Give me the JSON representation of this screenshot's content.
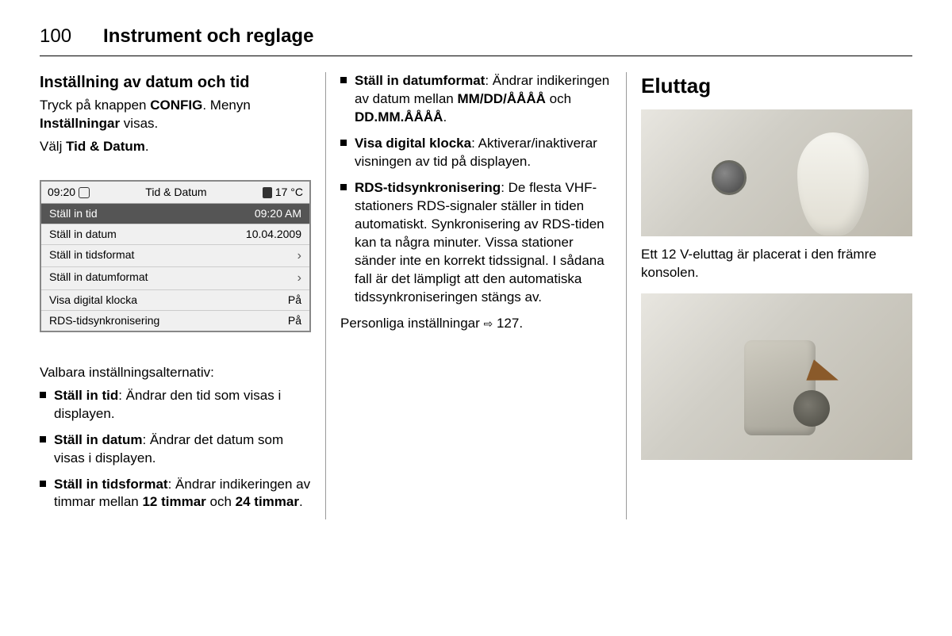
{
  "page_number": "100",
  "chapter": "Instrument och reglage",
  "col1": {
    "section_title": "Inställning av datum och tid",
    "intro_1a": "Tryck på knappen ",
    "intro_1b": "CONFIG",
    "intro_1c": ". Menyn ",
    "intro_1d": "Inställningar",
    "intro_1e": " visas.",
    "intro_2a": "Välj ",
    "intro_2b": "Tid & Datum",
    "intro_2c": ".",
    "display": {
      "time": "09:20",
      "title": "Tid & Datum",
      "temp": "17 °C",
      "rows": [
        {
          "label": "Ställ in tid",
          "value": "09:20 AM",
          "selected": true
        },
        {
          "label": "Ställ in datum",
          "value": "10.04.2009",
          "selected": false
        },
        {
          "label": "Ställ in tidsformat",
          "value": "arrow",
          "selected": false
        },
        {
          "label": "Ställ in datumformat",
          "value": "arrow",
          "selected": false
        },
        {
          "label": "Visa digital klocka",
          "value": "På",
          "selected": false
        },
        {
          "label": "RDS-tidsynkronisering",
          "value": "På",
          "selected": false
        }
      ]
    },
    "options_intro": "Valbara inställningsalternativ:",
    "options": [
      {
        "head": "Ställ in tid",
        "rest": ": Ändrar den tid som visas i displayen."
      },
      {
        "head": "Ställ in datum",
        "rest": ": Ändrar det datum som visas i displayen."
      },
      {
        "head": "Ställ in tidsformat",
        "rest": ": Ändrar indikeringen av timmar mellan ",
        "b2": "12 timmar",
        "mid": " och ",
        "b3": "24 timmar",
        "tail": "."
      }
    ]
  },
  "col2": {
    "options": [
      {
        "head": "Ställ in datumformat",
        "rest": ": Ändrar indikeringen av datum mellan ",
        "b2": "MM/DD/ÅÅÅÅ",
        "mid": " och ",
        "b3": "DD.MM.ÅÅÅÅ",
        "tail": "."
      },
      {
        "head": "Visa digital klocka",
        "rest": ": Aktiverar/inaktiverar visningen av tid på displayen."
      },
      {
        "head": "RDS-tidsynkronisering",
        "rest": ": De flesta VHF-stationers RDS-signaler ställer in tiden automatiskt. Synkronisering av RDS-tiden kan ta några minuter. Vissa stationer sänder inte en korrekt tidssignal. I sådana fall är det lämpligt att den automatiska tidssynkroniseringen stängs av."
      }
    ],
    "ref_text": "Personliga inställningar ",
    "ref_page": "127."
  },
  "col3": {
    "section_title": "Eluttag",
    "caption": "Ett 12 V-eluttag är placerat i den främre konsolen."
  }
}
